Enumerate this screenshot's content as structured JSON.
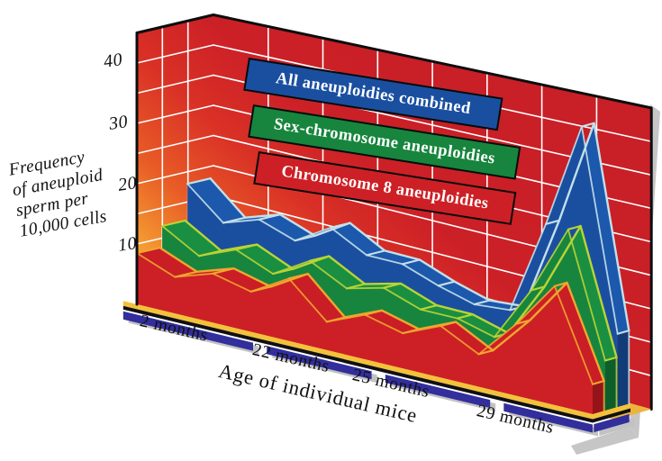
{
  "chart_data": {
    "type": "area",
    "variant": "3d-stacked-ribbons",
    "x_axis_title": "Age of individual mice",
    "y_axis_title_lines": [
      "Frequency",
      "of aneuploid",
      "sperm per",
      "10,000 cells"
    ],
    "y_ticks": [
      {
        "value": 40,
        "label": "40"
      },
      {
        "value": 30,
        "label": "30"
      },
      {
        "value": 20,
        "label": "20"
      },
      {
        "value": 10,
        "label": "10"
      }
    ],
    "y_wall_max": 45,
    "grid_step": 5,
    "categories": [
      "2 months",
      "22 months",
      "25 months",
      "29 months"
    ],
    "category_spans": [
      [
        -0.03,
        0.255
      ],
      [
        0.285,
        0.515
      ],
      [
        0.545,
        0.775
      ],
      [
        0.805,
        1.0
      ]
    ],
    "n_points": 13,
    "series": [
      {
        "name": "All aneuploidies combined",
        "color": "#1a4fa0",
        "top": "#1c58ab",
        "cap": "#123c78",
        "edge": "#c3e0ea",
        "depth": [
          0.66,
          0.96
        ],
        "values": [
          18,
          13,
          15,
          13,
          16.5,
          13.5,
          13.5,
          11.5,
          10,
          10.5,
          25,
          41,
          11
        ]
      },
      {
        "name": "Sex-chromosome aneuploidies",
        "color": "#17853d",
        "top": "#1a8f41",
        "cap": "#0e5e2b",
        "edge": "#b9d435",
        "depth": [
          0.33,
          0.63
        ],
        "values": [
          12,
          8.5,
          11,
          8.5,
          12,
          9,
          10.5,
          8.5,
          8.5,
          7,
          15.5,
          26,
          7.5
        ]
      },
      {
        "name": "Chromosome 8 aneuploidies",
        "color": "#cd2026",
        "top": "#c91e25",
        "cap": "#951419",
        "edge": "#f2a52f",
        "depth": [
          0.0,
          0.3
        ],
        "values": [
          8.5,
          6,
          8,
          6.5,
          10,
          4.5,
          7,
          5.5,
          8,
          5,
          11,
          18,
          4.5
        ]
      }
    ],
    "wall": {
      "gradient": [
        "#fcd24b",
        "#f6a433",
        "#e85b26",
        "#d93026",
        "#cc2027",
        "#c91f26"
      ],
      "grid_color": "#ffffff",
      "outline_color": "#0d0d0d",
      "shadow_color": "#c6c6c6"
    },
    "base": {
      "floor_color": "#edb43c",
      "front_stripe_color": "#f3c23a",
      "edge_stripe_color": "#101014",
      "tick_bar_color": "#322e9c",
      "shadow_color": "#c2c2c2"
    }
  }
}
